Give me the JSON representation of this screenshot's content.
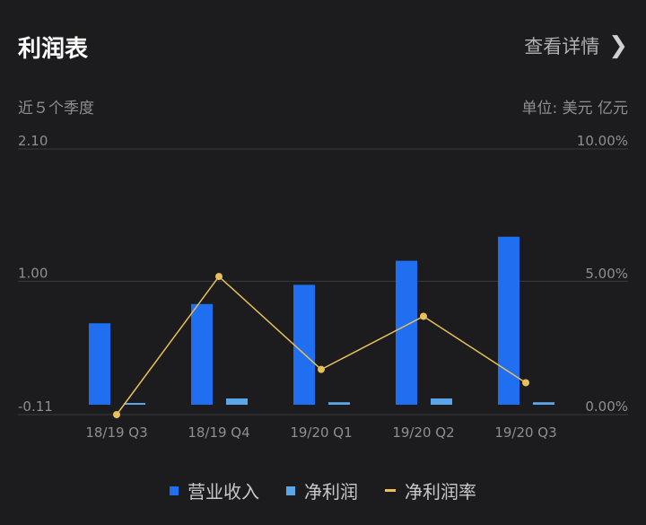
{
  "header": {
    "title": "利润表",
    "detail_label": "查看详情",
    "subtitle": "近５个季度",
    "unit": "单位: 美元 亿元"
  },
  "colors": {
    "revenue": "#1f6ff0",
    "net_profit": "#5aa6e8",
    "margin": "#e8c05a",
    "grid": "#3a3a3c",
    "axis_text": "#8e8e93"
  },
  "chart_data": {
    "type": "bar",
    "categories": [
      "18/19 Q3",
      "18/19 Q4",
      "19/20 Q1",
      "19/20 Q2",
      "19/20 Q3"
    ],
    "y_left": {
      "ylim": [
        -0.11,
        2.1
      ],
      "ticks": [
        "2.10",
        "1.00",
        "-0.11"
      ],
      "tick_values": [
        2.1,
        1.0,
        -0.11
      ]
    },
    "y_right": {
      "ylim": [
        0,
        10
      ],
      "ticks": [
        "10.00%",
        "5.00%",
        "0.00%"
      ],
      "tick_values": [
        10,
        5,
        0
      ]
    },
    "series": [
      {
        "name": "营业收入",
        "type": "bar",
        "axis": "left",
        "values": [
          0.76,
          0.92,
          1.08,
          1.28,
          1.48
        ]
      },
      {
        "name": "净利润",
        "type": "bar",
        "axis": "left",
        "values": [
          0.005,
          0.05,
          0.02,
          0.05,
          0.02
        ]
      },
      {
        "name": "净利润率",
        "type": "line",
        "axis": "right",
        "values": [
          0.0,
          5.2,
          1.7,
          3.7,
          1.2
        ]
      }
    ],
    "grid": true,
    "legend_position": "bottom"
  }
}
